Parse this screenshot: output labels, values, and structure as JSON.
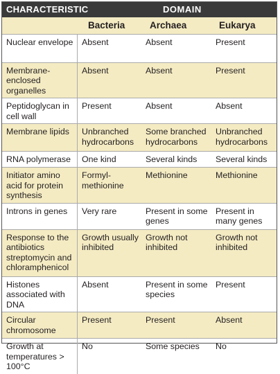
{
  "header": {
    "characteristic_label": "CHARACTERISTIC",
    "domain_label": "DOMAIN"
  },
  "domains": [
    "Bacteria",
    "Archaea",
    "Eukarya"
  ],
  "rows": [
    {
      "characteristic": "Nuclear envelope",
      "bacteria": "Absent",
      "archaea": "Absent",
      "eukarya": "Present"
    },
    {
      "characteristic": "Membrane-enclosed organelles",
      "bacteria": "Absent",
      "archaea": "Absent",
      "eukarya": "Present"
    },
    {
      "characteristic": "Peptidoglycan in cell wall",
      "bacteria": "Present",
      "archaea": "Absent",
      "eukarya": "Absent"
    },
    {
      "characteristic": "Membrane lipids",
      "bacteria": "Unbranched hydrocarbons",
      "archaea": "Some branched hydrocarbons",
      "eukarya": "Unbranched hydrocarbons"
    },
    {
      "characteristic": "RNA polymerase",
      "bacteria": "One kind",
      "archaea": "Several kinds",
      "eukarya": "Several kinds"
    },
    {
      "characteristic": "Initiator amino acid for protein synthesis",
      "bacteria": "Formyl-methionine",
      "archaea": "Methionine",
      "eukarya": "Methionine"
    },
    {
      "characteristic": "Introns in genes",
      "bacteria": "Very rare",
      "archaea": "Present in some genes",
      "eukarya": "Present in many genes"
    },
    {
      "characteristic": "Response to the antibiotics streptomycin and chloramphenicol",
      "bacteria": "Growth usually inhibited",
      "archaea": "Growth not inhibited",
      "eukarya": "Growth not inhibited"
    },
    {
      "characteristic": "Histones associated with DNA",
      "bacteria": "Absent",
      "archaea": "Present in some species",
      "eukarya": "Present"
    },
    {
      "characteristic": "Circular chromosome",
      "bacteria": "Present",
      "archaea": "Present",
      "eukarya": "Absent"
    },
    {
      "characteristic": "Growth at temperatures > 100°C",
      "bacteria": "No",
      "archaea": "Some species",
      "eukarya": "No"
    }
  ]
}
